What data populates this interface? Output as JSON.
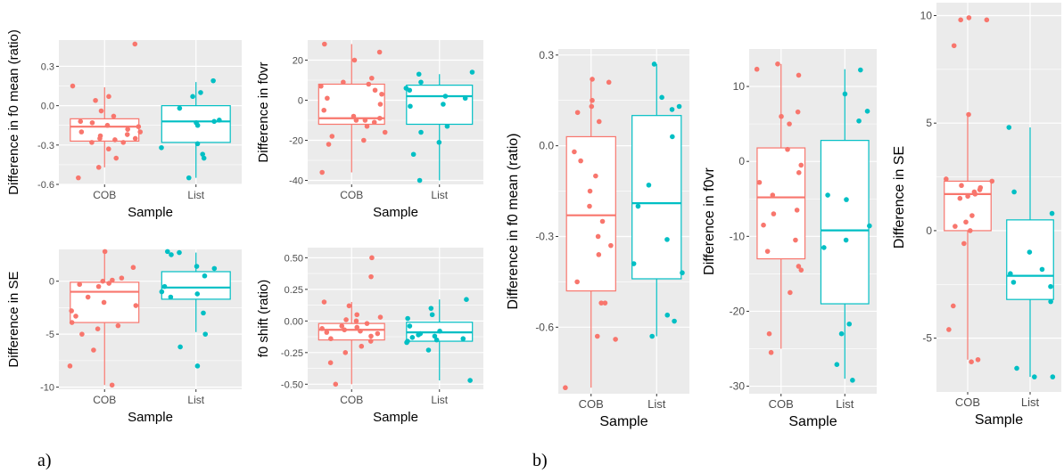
{
  "figure": {
    "panel_labels": [
      "a)",
      "b)"
    ]
  },
  "colors": {
    "COB": "#F8766D",
    "List": "#00BFC4",
    "panel_bg": "#EBEBEB",
    "grid": "#FFFFFF",
    "text": "#4D4D4D"
  },
  "chart_data": [
    {
      "id": "a1",
      "type": "boxplot",
      "xlabel": "Sample",
      "ylabel": "Difference in f0 mean (ratio)",
      "categories": [
        "COB",
        "List"
      ],
      "ylim": [
        -0.6,
        0.5
      ],
      "yticks": [
        0.3,
        0.0,
        -0.3,
        -0.6
      ],
      "ytick_labels": [
        "0.3",
        "0.0",
        "-0.3",
        "-0.6"
      ],
      "boxes": [
        {
          "name": "COB",
          "lower_whisker": -0.47,
          "q1": -0.27,
          "median": -0.16,
          "q3": -0.1,
          "upper_whisker": 0.14
        },
        {
          "name": "List",
          "lower_whisker": -0.55,
          "q1": -0.28,
          "median": -0.12,
          "q3": 0.0,
          "upper_whisker": 0.18
        }
      ],
      "points": [
        {
          "group": "COB",
          "y": [
            0.47,
            0.15,
            0.07,
            0.04,
            -0.04,
            -0.08,
            -0.12,
            -0.13,
            -0.15,
            -0.16,
            -0.18,
            -0.2,
            -0.2,
            -0.22,
            -0.23,
            -0.25,
            -0.25,
            -0.26,
            -0.28,
            -0.28,
            -0.33,
            -0.4,
            -0.47,
            -0.55
          ]
        },
        {
          "group": "List",
          "y": [
            0.19,
            0.1,
            0.07,
            -0.02,
            -0.11,
            -0.12,
            -0.13,
            -0.15,
            -0.29,
            -0.32,
            -0.37,
            -0.4,
            -0.55
          ]
        }
      ]
    },
    {
      "id": "a2",
      "type": "boxplot",
      "xlabel": "Sample",
      "ylabel": "Difference in f0vr",
      "categories": [
        "COB",
        "List"
      ],
      "ylim": [
        -42,
        30
      ],
      "yticks": [
        20,
        0,
        -20,
        -40
      ],
      "ytick_labels": [
        "20",
        "0",
        "-20",
        "-40"
      ],
      "boxes": [
        {
          "name": "COB",
          "lower_whisker": -36,
          "q1": -12,
          "median": -9,
          "q3": 8,
          "upper_whisker": 28
        },
        {
          "name": "List",
          "lower_whisker": -40,
          "q1": -12,
          "median": 2,
          "q3": 7.5,
          "upper_whisker": 13
        }
      ],
      "points": [
        {
          "group": "COB",
          "y": [
            28,
            24,
            20,
            11,
            9,
            8,
            7,
            5,
            3,
            1,
            -2,
            -5,
            -8,
            -9,
            -10,
            -10,
            -11,
            -13,
            -16,
            -18,
            -20,
            -22,
            -36
          ]
        },
        {
          "group": "List",
          "y": [
            14,
            13,
            9,
            6,
            5,
            2,
            1,
            -2,
            -3,
            -13,
            -16,
            -21,
            -27,
            -40
          ]
        }
      ]
    },
    {
      "id": "a3",
      "type": "boxplot",
      "xlabel": "Sample",
      "ylabel": "Difference in SE",
      "categories": [
        "COB",
        "List"
      ],
      "ylim": [
        -10.2,
        3
      ],
      "yticks": [
        0,
        -5,
        -10
      ],
      "ytick_labels": [
        "0",
        "-5",
        "-10"
      ],
      "boxes": [
        {
          "name": "COB",
          "lower_whisker": -9.8,
          "q1": -3.9,
          "median": -1,
          "q3": -0.1,
          "upper_whisker": 2.6
        },
        {
          "name": "List",
          "lower_whisker": -4.8,
          "q1": -1.7,
          "median": -0.6,
          "q3": 0.9,
          "upper_whisker": 2.7
        }
      ],
      "points": [
        {
          "group": "COB",
          "y": [
            2.8,
            1.3,
            0.3,
            0.1,
            0,
            -0.2,
            -0.3,
            -0.5,
            -1.5,
            -2,
            -2.3,
            -2.8,
            -3.3,
            -3.9,
            -4.2,
            -4.5,
            -5,
            -6.5,
            -8,
            -9.8
          ]
        },
        {
          "group": "List",
          "y": [
            2.8,
            2.7,
            2.5,
            1.4,
            1.2,
            0.5,
            -0.5,
            -1,
            -1.2,
            -1.5,
            -3,
            -5,
            -6.2,
            -8
          ]
        }
      ]
    },
    {
      "id": "a4",
      "type": "boxplot",
      "xlabel": "Sample",
      "ylabel": "f0 shift (ratio)",
      "categories": [
        "COB",
        "List"
      ],
      "ylim": [
        -0.54,
        0.58
      ],
      "yticks": [
        0.5,
        0.25,
        0.0,
        -0.25,
        -0.5
      ],
      "ytick_labels": [
        "0.50",
        "0.25",
        "0.00",
        "-0.25",
        "-0.50"
      ],
      "boxes": [
        {
          "name": "COB",
          "lower_whisker": -0.5,
          "q1": -0.15,
          "median": -0.07,
          "q3": -0.02,
          "upper_whisker": 0.15
        },
        {
          "name": "List",
          "lower_whisker": -0.47,
          "q1": -0.16,
          "median": -0.09,
          "q3": -0.01,
          "upper_whisker": 0.17
        }
      ],
      "points": [
        {
          "group": "COB",
          "y": [
            0.5,
            0.35,
            0.15,
            0.12,
            0.05,
            0.03,
            0.01,
            0.0,
            -0.02,
            -0.04,
            -0.05,
            -0.06,
            -0.07,
            -0.08,
            -0.09,
            -0.1,
            -0.12,
            -0.14,
            -0.16,
            -0.2,
            -0.25,
            -0.33,
            -0.5
          ]
        },
        {
          "group": "List",
          "y": [
            0.17,
            0.1,
            0.05,
            0.02,
            -0.04,
            -0.08,
            -0.1,
            -0.11,
            -0.12,
            -0.13,
            -0.14,
            -0.15,
            -0.16,
            -0.17,
            -0.23,
            -0.47
          ]
        }
      ]
    },
    {
      "id": "b1",
      "type": "boxplot",
      "xlabel": "Sample",
      "ylabel": "Difference in f0 mean (ratio)",
      "categories": [
        "COB",
        "List"
      ],
      "ylim": [
        -0.82,
        0.32
      ],
      "yticks": [
        0.3,
        0.0,
        -0.3,
        -0.6
      ],
      "ytick_labels": [
        "0.3",
        "0.0",
        "-0.3",
        "-0.6"
      ],
      "boxes": [
        {
          "name": "COB",
          "lower_whisker": -0.8,
          "q1": -0.48,
          "median": -0.23,
          "q3": 0.03,
          "upper_whisker": 0.22
        },
        {
          "name": "List",
          "lower_whisker": -0.63,
          "q1": -0.44,
          "median": -0.19,
          "q3": 0.1,
          "upper_whisker": 0.27
        }
      ],
      "points": [
        {
          "group": "COB",
          "y": [
            0.22,
            0.21,
            0.15,
            0.13,
            0.11,
            0.08,
            -0.02,
            -0.05,
            -0.1,
            -0.15,
            -0.2,
            -0.25,
            -0.3,
            -0.33,
            -0.36,
            -0.45,
            -0.52,
            -0.52,
            -0.63,
            -0.64,
            -0.8
          ]
        },
        {
          "group": "List",
          "y": [
            0.27,
            0.16,
            0.13,
            0.12,
            0.03,
            -0.13,
            -0.2,
            -0.31,
            -0.39,
            -0.42,
            -0.56,
            -0.58,
            -0.63
          ]
        }
      ]
    },
    {
      "id": "b2",
      "type": "boxplot",
      "xlabel": "Sample",
      "ylabel": "Difference in f0vr",
      "categories": [
        "COB",
        "List"
      ],
      "ylim": [
        -31,
        15
      ],
      "yticks": [
        10,
        0,
        -10,
        -20,
        -30
      ],
      "ytick_labels": [
        "10",
        "0",
        "-10",
        "-20",
        "-30"
      ],
      "boxes": [
        {
          "name": "COB",
          "lower_whisker": -25,
          "q1": -13,
          "median": -4.8,
          "q3": 1.8,
          "upper_whisker": 13
        },
        {
          "name": "List",
          "lower_whisker": -29,
          "q1": -19,
          "median": -9.2,
          "q3": 2.8,
          "upper_whisker": 12.3
        }
      ],
      "points": [
        {
          "group": "COB",
          "y": [
            13,
            12.3,
            11.5,
            6.6,
            6,
            5,
            1.6,
            -0.5,
            -1.5,
            -2.8,
            -4.5,
            -6.5,
            -7,
            -8.5,
            -10.5,
            -12,
            -14,
            -14.5,
            -17.5,
            -23,
            -25.5
          ]
        },
        {
          "group": "List",
          "y": [
            12.2,
            9,
            6.7,
            5.4,
            -4.5,
            -5.1,
            -8.6,
            -10.5,
            -11.5,
            -21.7,
            -23,
            -27.1,
            -29.2
          ]
        }
      ]
    },
    {
      "id": "b3",
      "type": "boxplot",
      "xlabel": "Sample",
      "ylabel": "Difference in SE",
      "categories": [
        "COB",
        "List"
      ],
      "ylim": [
        -7.5,
        10.6
      ],
      "yticks": [
        10,
        5,
        0,
        -5
      ],
      "ytick_labels": [
        "10",
        "5",
        "0",
        "-5"
      ],
      "boxes": [
        {
          "name": "COB",
          "lower_whisker": -6,
          "q1": 0,
          "median": 1.7,
          "q3": 2.3,
          "upper_whisker": 5.4
        },
        {
          "name": "List",
          "lower_whisker": -6.8,
          "q1": -3.2,
          "median": -2.1,
          "q3": 0.5,
          "upper_whisker": 4.8
        }
      ],
      "points": [
        {
          "group": "COB",
          "y": [
            9.9,
            9.8,
            9.8,
            8.6,
            5.4,
            2.4,
            2.3,
            2.1,
            2,
            1.9,
            1.8,
            1.7,
            1.6,
            1.5,
            0.7,
            0.4,
            0.2,
            0,
            -0.6,
            -3.5,
            -4.6,
            -6,
            -6.1
          ]
        },
        {
          "group": "List",
          "y": [
            4.8,
            1.8,
            0.8,
            -1,
            -1.8,
            -2,
            -2.4,
            -2.6,
            -3.3,
            -6.4,
            -6.8,
            -6.8
          ]
        }
      ]
    }
  ]
}
